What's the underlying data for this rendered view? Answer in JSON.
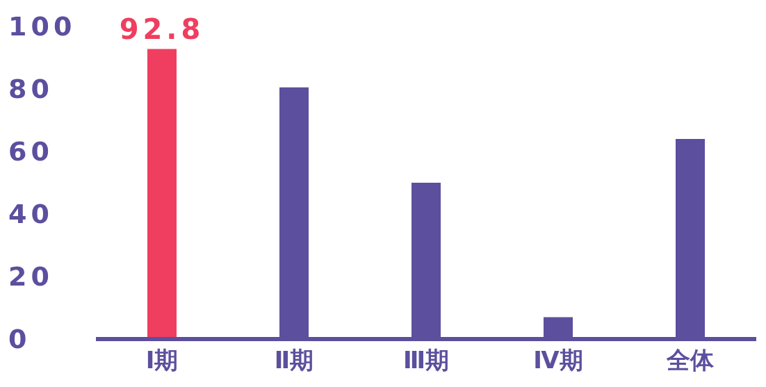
{
  "chart_data": {
    "type": "bar",
    "categories": [
      "Ⅰ期",
      "Ⅱ期",
      "Ⅲ期",
      "Ⅳ期",
      "全体"
    ],
    "values": [
      92.8,
      80.5,
      50,
      7,
      64
    ],
    "colors": [
      "#ef3e5f",
      "#5b4f9e",
      "#5b4f9e",
      "#5b4f9e",
      "#5b4f9e"
    ],
    "value_labels": [
      "92.8",
      null,
      null,
      null,
      null
    ],
    "ylim": [
      0,
      100
    ],
    "yticks": [
      0,
      20,
      40,
      60,
      80,
      100
    ],
    "grid": false
  }
}
